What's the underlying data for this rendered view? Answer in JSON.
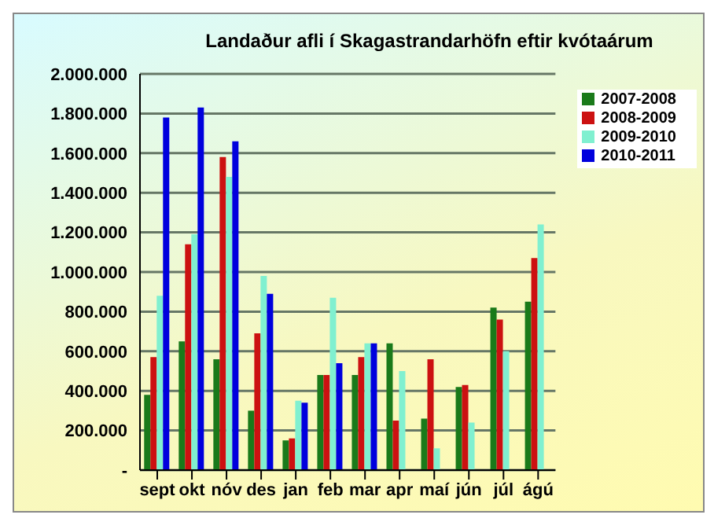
{
  "chart_data": {
    "type": "bar",
    "title": "Landaður afli í Skagastrandarhöfn eftir kvótaárum",
    "categories": [
      "sept",
      "okt",
      "nóv",
      "des",
      "jan",
      "feb",
      "mar",
      "apr",
      "maí",
      "jún",
      "júl",
      "ágú"
    ],
    "series": [
      {
        "name": "2007-2008",
        "color": "#1a7a1a",
        "values": [
          380000,
          650000,
          560000,
          300000,
          150000,
          480000,
          480000,
          640000,
          260000,
          420000,
          820000,
          850000
        ]
      },
      {
        "name": "2008-2009",
        "color": "#cc1111",
        "values": [
          570000,
          1140000,
          1580000,
          690000,
          160000,
          480000,
          570000,
          250000,
          560000,
          430000,
          760000,
          1070000
        ]
      },
      {
        "name": "2009-2010",
        "color": "#80f0d0",
        "values": [
          880000,
          1190000,
          1480000,
          980000,
          350000,
          870000,
          640000,
          500000,
          110000,
          240000,
          600000,
          1240000
        ]
      },
      {
        "name": "2010-2011",
        "color": "#0000dd",
        "values": [
          1780000,
          1830000,
          1660000,
          890000,
          340000,
          540000,
          640000,
          null,
          null,
          null,
          null,
          null
        ]
      }
    ],
    "ylim": [
      0,
      2000000
    ],
    "yticks": [
      {
        "value": 0,
        "label": "-"
      },
      {
        "value": 200000,
        "label": "200.000"
      },
      {
        "value": 400000,
        "label": "400.000"
      },
      {
        "value": 600000,
        "label": "600.000"
      },
      {
        "value": 800000,
        "label": "800.000"
      },
      {
        "value": 1000000,
        "label": "1.000.000"
      },
      {
        "value": 1200000,
        "label": "1.200.000"
      },
      {
        "value": 1400000,
        "label": "1.400.000"
      },
      {
        "value": 1600000,
        "label": "1.600.000"
      },
      {
        "value": 1800000,
        "label": "1.800.000"
      },
      {
        "value": 2000000,
        "label": "2.000.000"
      }
    ],
    "grid": "y",
    "legend": "top right"
  }
}
